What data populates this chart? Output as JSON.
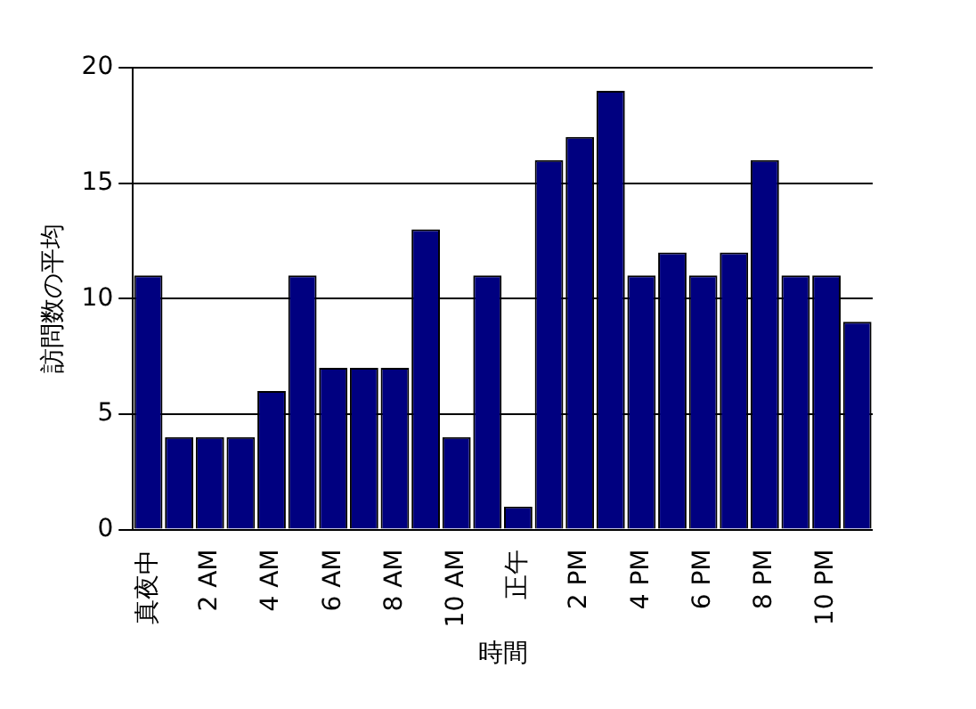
{
  "chart_data": {
    "type": "bar",
    "xlabel": "時間",
    "ylabel": "訪問数の平均",
    "categories": [
      "真夜中",
      null,
      "2 AM",
      null,
      "4 AM",
      null,
      "6 AM",
      null,
      "8 AM",
      null,
      "10 AM",
      null,
      "正午",
      null,
      "2 PM",
      null,
      "4 PM",
      null,
      "6 PM",
      null,
      "8 PM",
      null,
      "10 PM",
      null
    ],
    "values": [
      11,
      4,
      4,
      4,
      6,
      11,
      7,
      7,
      7,
      13,
      4,
      11,
      1,
      16,
      17,
      19,
      11,
      12,
      11,
      12,
      16,
      11,
      11,
      9
    ],
    "color": "#000080",
    "ylim": [
      0,
      20
    ],
    "yticks": [
      0,
      5,
      10,
      15,
      20
    ],
    "grid": "y",
    "legend": false
  }
}
